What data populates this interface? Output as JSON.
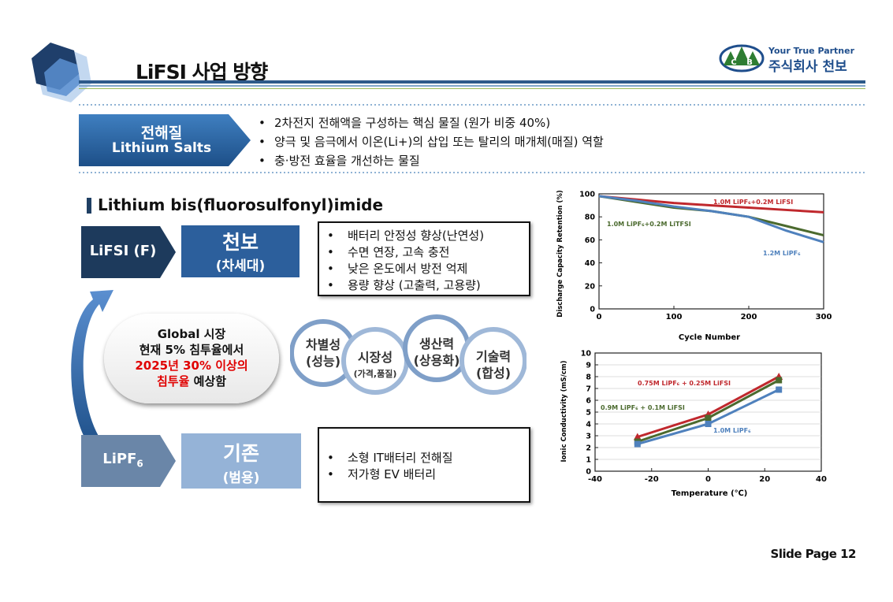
{
  "header": {
    "title": "LiFSI 사업 방향",
    "logo_tagline": "Your True Partner",
    "logo_company": "주식회사 천보",
    "logo_letters": [
      "C",
      "B"
    ]
  },
  "definition": {
    "title_ko": "전해질",
    "title_en": "Lithium Salts",
    "bullets": [
      "2차전지 전해액을 구성하는 핵심 물질 (원가 비중 40%)",
      "양극 및 음극에서 이온(Li+)의 삽입 또는 탈리의 매개체(매질) 역할",
      "충·방전 효율을 개선하는 물질"
    ]
  },
  "section_heading": "Lithium bis(fluorosulfonyl)imide",
  "lifsi": {
    "tag": "LiFSI (F)",
    "name": "천보",
    "sub": "(차세대)",
    "features": [
      "배터리 안정성 향상(난연성)",
      "수면 연장, 고속 충전",
      "낮은 온도에서 방전 억제",
      "용량 향상 (고출력, 고용량)"
    ]
  },
  "lipf6": {
    "tag": "LiPF",
    "tag_sub": "6",
    "name": "기존",
    "sub": "(범용)",
    "uses": [
      "소형 IT배터리 전해질",
      "저가형 EV 배터리"
    ]
  },
  "market": {
    "line1": "Global 시장",
    "line2": "현재 5% 침투율에서",
    "line3_red": "2025년 30% 이상의",
    "line4_red": "침투율",
    "line4_rest": " 예상함"
  },
  "strengths": [
    {
      "label": "차별성",
      "sub": "(성능)",
      "small": false
    },
    {
      "label": "시장성",
      "sub": "(가격,품질)",
      "small": true
    },
    {
      "label": "생산력",
      "sub": "(상용화)",
      "small": false
    },
    {
      "label": "기술력",
      "sub": "(합성)",
      "small": false
    }
  ],
  "slide_page": "Slide Page 12",
  "chart_data": [
    {
      "type": "line",
      "xlabel": "Cycle Number",
      "ylabel": "Discharge Capacity Retention (%)",
      "xlim": [
        0,
        300
      ],
      "ylim": [
        0,
        100
      ],
      "xticks": [
        0,
        100,
        200,
        300
      ],
      "yticks": [
        0,
        20,
        40,
        60,
        80,
        100
      ],
      "grid": false,
      "series": [
        {
          "name": "1.0M LiPF₆+0.2M LiFSI",
          "color": "#c0282d",
          "x": [
            0,
            50,
            100,
            150,
            200,
            250,
            300
          ],
          "y": [
            98,
            95,
            92,
            90,
            88,
            86,
            84
          ]
        },
        {
          "name": "1.0M LiPF₆+0.2M LiTFSI",
          "color": "#4b6a2e",
          "x": [
            0,
            50,
            100,
            150,
            200,
            250,
            300
          ],
          "y": [
            98,
            93,
            88,
            85,
            80,
            72,
            64
          ]
        },
        {
          "name": "1.2M LiPF₆",
          "color": "#4f81bd",
          "x": [
            0,
            50,
            100,
            150,
            200,
            250,
            300
          ],
          "y": [
            98,
            94,
            89,
            85,
            80,
            68,
            58
          ]
        }
      ]
    },
    {
      "type": "line",
      "xlabel": "Temperature (℃)",
      "ylabel": "Ionic Conductivity (mS/cm)",
      "xlim": [
        -40,
        40
      ],
      "ylim": [
        0,
        10
      ],
      "xticks": [
        -40,
        -20,
        0,
        20,
        40
      ],
      "yticks": [
        0,
        1,
        2,
        3,
        4,
        5,
        6,
        7,
        8,
        9,
        10
      ],
      "grid": true,
      "series": [
        {
          "name": "0.75M LiPF₆ + 0.25M LiFSI",
          "color": "#c0282d",
          "marker": "triangle",
          "x": [
            -25,
            0,
            25
          ],
          "y": [
            2.9,
            4.8,
            8.0
          ]
        },
        {
          "name": "0.9M LiPF₆ + 0.1M LiFSI",
          "color": "#4b6a2e",
          "marker": "square",
          "x": [
            -25,
            0,
            25
          ],
          "y": [
            2.5,
            4.5,
            7.7
          ]
        },
        {
          "name": "1.0M LiPF₆",
          "color": "#4f81bd",
          "marker": "square",
          "x": [
            -25,
            0,
            25
          ],
          "y": [
            2.3,
            4.0,
            6.9
          ]
        }
      ]
    }
  ]
}
